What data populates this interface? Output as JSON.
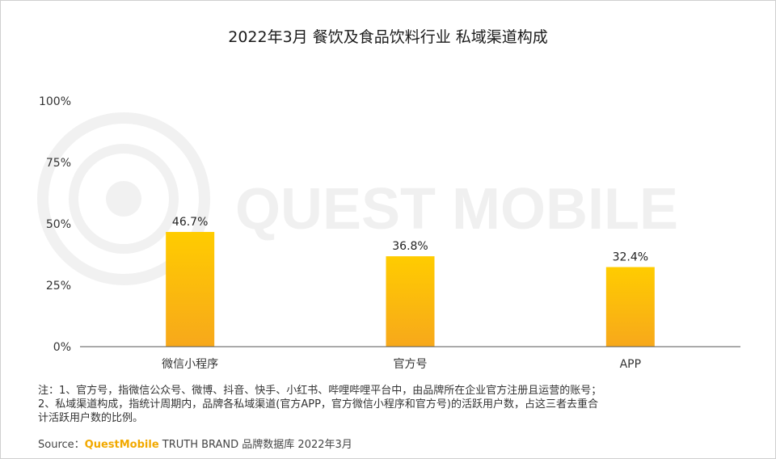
{
  "chart_data": {
    "type": "bar",
    "title": "2022年3月 餐饮及食品饮料行业 私域渠道构成",
    "categories": [
      "微信小程序",
      "官方号",
      "APP"
    ],
    "values": [
      46.7,
      36.8,
      32.4
    ],
    "value_labels": [
      "46.7%",
      "36.8%",
      "32.4%"
    ],
    "ylim": [
      0,
      100
    ],
    "yticks": [
      "0%",
      "25%",
      "50%",
      "75%",
      "100%"
    ],
    "ytick_values": [
      0,
      25,
      50,
      75,
      100
    ],
    "xlabel": "",
    "ylabel": "",
    "grid": false,
    "colors": {
      "bar_top": "#FFCC00",
      "bar_bottom": "#F7A81B",
      "axis": "#555555"
    }
  },
  "watermark": "QUEST MOBILE",
  "notes": [
    "注：1、官方号，指微信公众号、微博、抖音、快手、小红书、哔哩哔哩平台中，由品牌所在企业官方注册且运营的账号；",
    "2、私域渠道构成，指统计周期内，品牌各私域渠道(官方APP，官方微信小程序和官方号)的活跃用户数，占这三者去重合",
    "计活跃用户数的比例。"
  ],
  "source": {
    "label": "Source：",
    "brand": "QuestMobile",
    "rest": " TRUTH BRAND 品牌数据库 2022年3月"
  }
}
